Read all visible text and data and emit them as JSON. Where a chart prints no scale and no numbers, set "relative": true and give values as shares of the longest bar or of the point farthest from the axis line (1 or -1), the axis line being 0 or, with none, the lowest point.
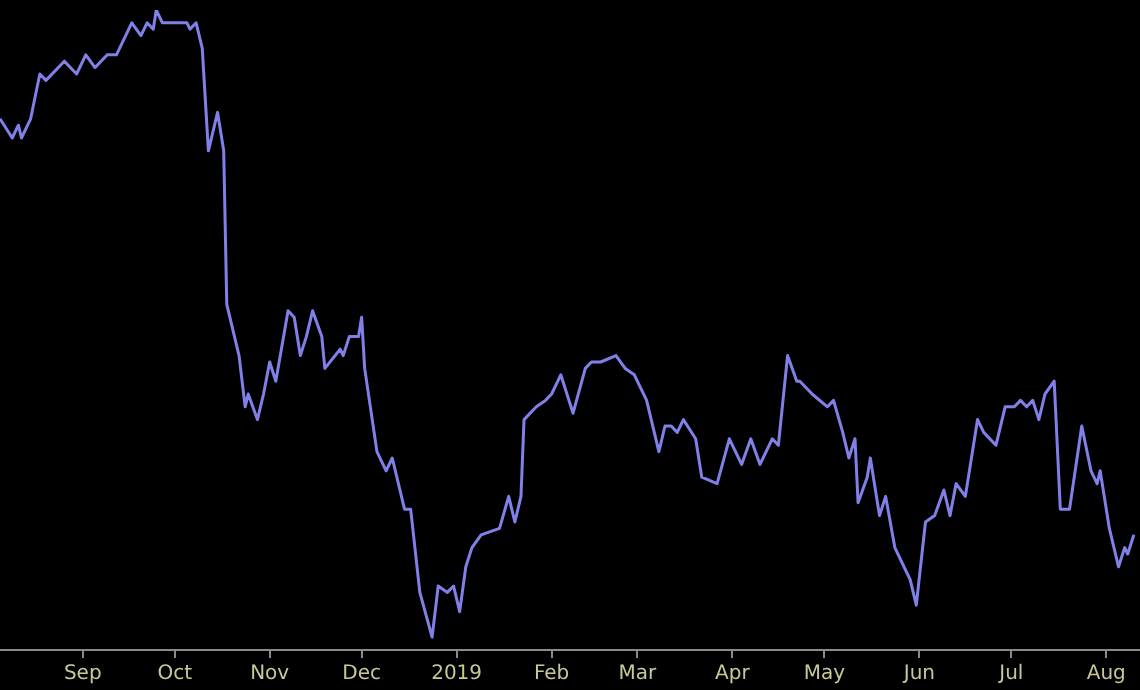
{
  "chart_data": {
    "type": "line",
    "relative": true,
    "xlim": [
      "2018-08-05",
      "2019-08-12"
    ],
    "xticks": [
      {
        "value": "2018-09-01",
        "label": "Sep"
      },
      {
        "value": "2018-10-01",
        "label": "Oct"
      },
      {
        "value": "2018-11-01",
        "label": "Nov"
      },
      {
        "value": "2018-12-01",
        "label": "Dec"
      },
      "2019",
      {
        "value": "2019-02-01",
        "label": "Feb"
      },
      {
        "value": "2019-03-01",
        "label": "Mar"
      },
      {
        "value": "2019-04-01",
        "label": "Apr"
      },
      {
        "value": "2019-05-01",
        "label": "May"
      },
      {
        "value": "2019-06-01",
        "label": "Jun"
      },
      {
        "value": "2019-07-01",
        "label": "Jul"
      },
      {
        "value": "2019-08-01",
        "label": "Aug"
      }
    ],
    "series": [
      {
        "color": "#8080e8",
        "x": [
          "2018-08-05",
          "2018-08-09",
          "2018-08-11",
          "2018-08-12",
          "2018-08-15",
          "2018-08-18",
          "2018-08-20",
          "2018-08-26",
          "2018-08-30",
          "2018-09-02",
          "2018-09-05",
          "2018-09-09",
          "2018-09-12",
          "2018-09-17",
          "2018-09-20",
          "2018-09-22",
          "2018-09-24",
          "2018-09-25",
          "2018-09-27",
          "2018-10-01",
          "2018-10-05",
          "2018-10-06",
          "2018-10-08",
          "2018-10-10",
          "2018-10-12",
          "2018-10-15",
          "2018-10-17",
          "2018-10-18",
          "2018-10-22",
          "2018-10-24",
          "2018-10-25",
          "2018-10-28",
          "2018-10-30",
          "2018-11-01",
          "2018-11-03",
          "2018-11-07",
          "2018-11-09",
          "2018-11-11",
          "2018-11-13",
          "2018-11-15",
          "2018-11-18",
          "2018-11-19",
          "2018-11-24",
          "2018-11-25",
          "2018-11-27",
          "2018-11-30",
          "2018-12-01",
          "2018-12-02",
          "2018-12-06",
          "2018-12-09",
          "2018-12-11",
          "2018-12-15",
          "2018-12-17",
          "2018-12-20",
          "2018-12-24",
          "2018-12-26",
          "2018-12-29",
          "2018-12-31",
          "2019-01-02",
          "2019-01-04",
          "2019-01-06",
          "2019-01-09",
          "2019-01-15",
          "2019-01-18",
          "2019-01-20",
          "2019-01-22",
          "2019-01-23",
          "2019-01-27",
          "2019-01-30",
          "2019-02-01",
          "2019-02-04",
          "2019-02-08",
          "2019-02-12",
          "2019-02-14",
          "2019-02-17",
          "2019-02-22",
          "2019-02-25",
          "2019-02-28",
          "2019-03-04",
          "2019-03-08",
          "2019-03-10",
          "2019-03-12",
          "2019-03-14",
          "2019-03-16",
          "2019-03-20",
          "2019-03-22",
          "2019-03-27",
          "2019-03-31",
          "2019-04-04",
          "2019-04-07",
          "2019-04-10",
          "2019-04-14",
          "2019-04-16",
          "2019-04-19",
          "2019-04-22",
          "2019-04-23",
          "2019-04-27",
          "2019-05-02",
          "2019-05-04",
          "2019-05-07",
          "2019-05-09",
          "2019-05-11",
          "2019-05-12",
          "2019-05-15",
          "2019-05-16",
          "2019-05-19",
          "2019-05-21",
          "2019-05-24",
          "2019-05-27",
          "2019-05-29",
          "2019-05-31",
          "2019-06-03",
          "2019-06-06",
          "2019-06-09",
          "2019-06-11",
          "2019-06-13",
          "2019-06-16",
          "2019-06-18",
          "2019-06-20",
          "2019-06-22",
          "2019-06-26",
          "2019-06-29",
          "2019-07-02",
          "2019-07-04",
          "2019-07-06",
          "2019-07-08",
          "2019-07-10",
          "2019-07-12",
          "2019-07-15",
          "2019-07-17",
          "2019-07-20",
          "2019-07-24",
          "2019-07-27",
          "2019-07-29",
          "2019-07-30",
          "2019-08-02",
          "2019-08-05",
          "2019-08-07",
          "2019-08-08",
          "2019-08-10"
        ],
        "values": [
          0.83,
          0.8,
          0.82,
          0.8,
          0.83,
          0.9,
          0.89,
          0.92,
          0.9,
          0.93,
          0.91,
          0.93,
          0.93,
          0.98,
          0.96,
          0.98,
          0.97,
          1.0,
          0.98,
          0.98,
          0.98,
          0.97,
          0.98,
          0.94,
          0.78,
          0.84,
          0.78,
          0.54,
          0.46,
          0.38,
          0.4,
          0.36,
          0.4,
          0.45,
          0.42,
          0.53,
          0.52,
          0.46,
          0.49,
          0.53,
          0.49,
          0.44,
          0.47,
          0.46,
          0.49,
          0.49,
          0.52,
          0.44,
          0.31,
          0.28,
          0.3,
          0.22,
          0.22,
          0.09,
          0.02,
          0.1,
          0.09,
          0.1,
          0.06,
          0.13,
          0.16,
          0.18,
          0.19,
          0.24,
          0.2,
          0.24,
          0.36,
          0.38,
          0.39,
          0.4,
          0.43,
          0.37,
          0.44,
          0.45,
          0.45,
          0.46,
          0.44,
          0.43,
          0.39,
          0.31,
          0.35,
          0.35,
          0.34,
          0.36,
          0.33,
          0.27,
          0.26,
          0.33,
          0.29,
          0.33,
          0.29,
          0.33,
          0.32,
          0.46,
          0.42,
          0.42,
          0.4,
          0.38,
          0.39,
          0.34,
          0.3,
          0.33,
          0.23,
          0.27,
          0.3,
          0.21,
          0.24,
          0.16,
          0.13,
          0.11,
          0.07,
          0.2,
          0.21,
          0.25,
          0.21,
          0.26,
          0.24,
          0.3,
          0.36,
          0.34,
          0.32,
          0.38,
          0.38,
          0.39,
          0.38,
          0.39,
          0.36,
          0.4,
          0.42,
          0.22,
          0.22,
          0.35,
          0.28,
          0.26,
          0.28,
          0.19,
          0.13,
          0.16,
          0.15,
          0.18
        ]
      }
    ]
  }
}
